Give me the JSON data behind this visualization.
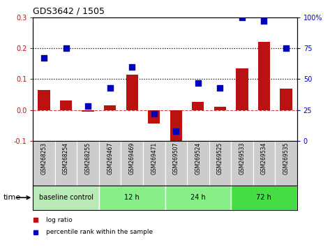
{
  "title": "GDS3642 / 1505",
  "samples": [
    "GSM268253",
    "GSM268254",
    "GSM268255",
    "GSM269467",
    "GSM269469",
    "GSM269471",
    "GSM269507",
    "GSM269524",
    "GSM269525",
    "GSM269533",
    "GSM269534",
    "GSM269535"
  ],
  "log_ratio": [
    0.065,
    0.03,
    -0.005,
    0.015,
    0.115,
    -0.045,
    -0.115,
    0.025,
    0.01,
    0.135,
    0.22,
    0.07
  ],
  "percentile_rank_pct": [
    67,
    75,
    28,
    43,
    60,
    22,
    8,
    47,
    43,
    100,
    97,
    75
  ],
  "left_ylim": [
    -0.1,
    0.3
  ],
  "right_ylim": [
    0,
    100
  ],
  "left_yticks": [
    -0.1,
    0.0,
    0.1,
    0.2,
    0.3
  ],
  "right_yticks": [
    0,
    25,
    50,
    75,
    100
  ],
  "hlines": [
    0.1,
    0.2
  ],
  "bar_color": "#bb1111",
  "scatter_color": "#0000bb",
  "bar_width": 0.55,
  "time_groups": [
    {
      "label": "baseline control",
      "start": 0,
      "end": 3,
      "color": "#b8eab8"
    },
    {
      "label": "12 h",
      "start": 3,
      "end": 6,
      "color": "#88ee88"
    },
    {
      "label": "24 h",
      "start": 6,
      "end": 9,
      "color": "#88ee88"
    },
    {
      "label": "72 h",
      "start": 9,
      "end": 12,
      "color": "#44dd44"
    }
  ],
  "time_label": "time",
  "legend_bar_label": "log ratio",
  "legend_scatter_label": "percentile rank within the sample",
  "zero_line_color": "#cc4444",
  "bg_color": "#cccccc",
  "scatter_size": 30
}
